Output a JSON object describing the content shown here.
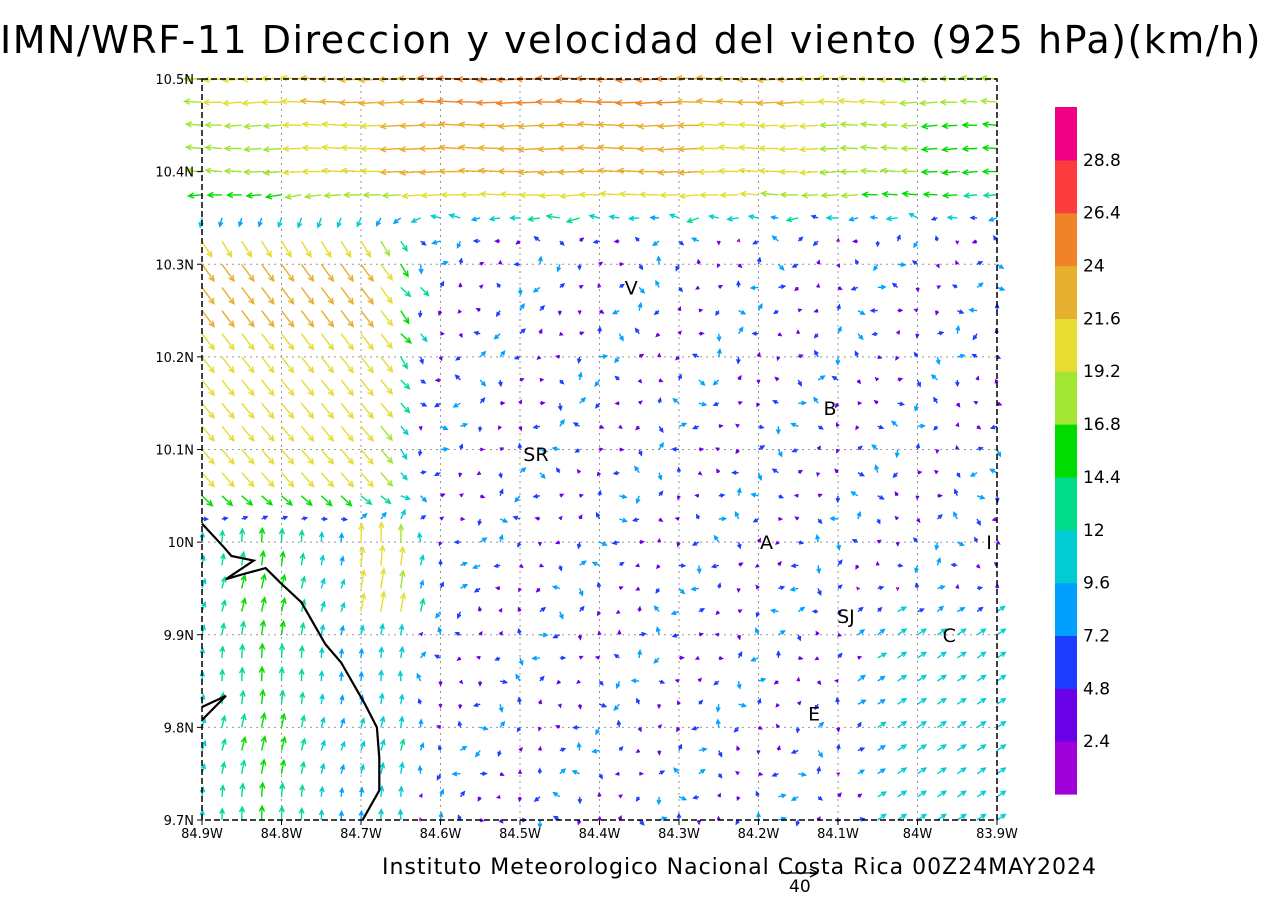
{
  "title": "IMN/WRF-11 Direccion y velocidad del viento (925 hPa)(km/h)",
  "footer": "Instituto Meteorologico Nacional Costa Rica 00Z24MAY2024",
  "reference_vector": {
    "label": "40",
    "speed_kmh": 40
  },
  "map": {
    "lon_range": [
      -84.9,
      -83.9
    ],
    "lat_range": [
      9.7,
      10.5
    ],
    "x_ticks": [
      {
        "value": -84.9,
        "label": "84.9W"
      },
      {
        "value": -84.8,
        "label": "84.8W"
      },
      {
        "value": -84.7,
        "label": "84.7W"
      },
      {
        "value": -84.6,
        "label": "84.6W"
      },
      {
        "value": -84.5,
        "label": "84.5W"
      },
      {
        "value": -84.4,
        "label": "84.4W"
      },
      {
        "value": -84.3,
        "label": "84.3W"
      },
      {
        "value": -84.2,
        "label": "84.2W"
      },
      {
        "value": -84.1,
        "label": "84.1W"
      },
      {
        "value": -84.0,
        "label": "84W"
      },
      {
        "value": -83.9,
        "label": "83.9W"
      }
    ],
    "y_ticks": [
      {
        "value": 9.7,
        "label": "9.7N"
      },
      {
        "value": 9.8,
        "label": "9.8N"
      },
      {
        "value": 9.9,
        "label": "9.9N"
      },
      {
        "value": 10.0,
        "label": "10N"
      },
      {
        "value": 10.1,
        "label": "10.1N"
      },
      {
        "value": 10.2,
        "label": "10.2N"
      },
      {
        "value": 10.3,
        "label": "10.3N"
      },
      {
        "value": 10.4,
        "label": "10.4N"
      },
      {
        "value": 10.5,
        "label": "10.5N"
      }
    ],
    "grid": "dotted",
    "places": [
      {
        "label": "V",
        "lon": -84.36,
        "lat": 10.275
      },
      {
        "label": "B",
        "lon": -84.11,
        "lat": 10.145
      },
      {
        "label": "SR",
        "lon": -84.48,
        "lat": 10.095
      },
      {
        "label": "A",
        "lon": -84.19,
        "lat": 10.0
      },
      {
        "label": "I",
        "lon": -83.91,
        "lat": 10.0
      },
      {
        "label": "SJ",
        "lon": -84.09,
        "lat": 9.92
      },
      {
        "label": "C",
        "lon": -83.96,
        "lat": 9.9
      },
      {
        "label": "E",
        "lon": -84.13,
        "lat": 9.815
      }
    ],
    "coastline": [
      [
        -84.9,
        10.02
      ],
      [
        -84.873,
        9.995
      ],
      [
        -84.863,
        9.985
      ],
      [
        -84.835,
        9.98
      ],
      [
        -84.87,
        9.96
      ],
      [
        -84.85,
        9.965
      ],
      [
        -84.82,
        9.972
      ],
      [
        -84.8,
        9.955
      ],
      [
        -84.775,
        9.935
      ],
      [
        -84.755,
        9.905
      ],
      [
        -84.745,
        9.89
      ],
      [
        -84.725,
        9.87
      ],
      [
        -84.695,
        9.825
      ],
      [
        -84.68,
        9.8
      ],
      [
        -84.677,
        9.767
      ],
      [
        -84.677,
        9.732
      ],
      [
        -84.698,
        9.7
      ]
    ],
    "coastline2": [
      [
        -84.9,
        9.822
      ],
      [
        -84.87,
        9.834
      ],
      [
        -84.9,
        9.808
      ]
    ]
  },
  "colorbar": {
    "levels": [
      "2.4",
      "4.8",
      "7.2",
      "9.6",
      "12",
      "14.4",
      "16.8",
      "19.2",
      "21.6",
      "24",
      "26.4",
      "28.8"
    ],
    "colors": [
      "#a000d8",
      "#6a00e8",
      "#1e3cff",
      "#00a0ff",
      "#00ccd2",
      "#00dc8c",
      "#00dc00",
      "#a0e632",
      "#e6dc32",
      "#e6af2d",
      "#f08228",
      "#fa3c3c",
      "#f00082"
    ]
  },
  "wind_field": {
    "grid": {
      "lon_start": -84.9,
      "lat_start": 9.7,
      "step_deg": 0.025,
      "cols": 41,
      "rows": 33
    },
    "arrow_scale_note": "arrow length proportional to speed, reference 40 km/h",
    "regimes": [
      {
        "name": "northern easterly jet",
        "lat_min": 10.33,
        "speed_kmh": 22,
        "direction": "toward west"
      },
      {
        "name": "northwestern coastal flow",
        "lon_max": -84.6,
        "lat_min": 10.0,
        "speed_kmh": 20,
        "direction": "toward southeast"
      },
      {
        "name": "western valley southerly",
        "lon_max": -84.6,
        "lat_max": 10.1,
        "speed_kmh": 17,
        "direction": "toward north"
      },
      {
        "name": "central light variable",
        "speed_kmh": 6,
        "direction": "variable"
      },
      {
        "name": "southeast northeasterly",
        "lon_min": -84.1,
        "lat_max": 9.95,
        "speed_kmh": 14,
        "direction": "toward northeast"
      }
    ]
  }
}
